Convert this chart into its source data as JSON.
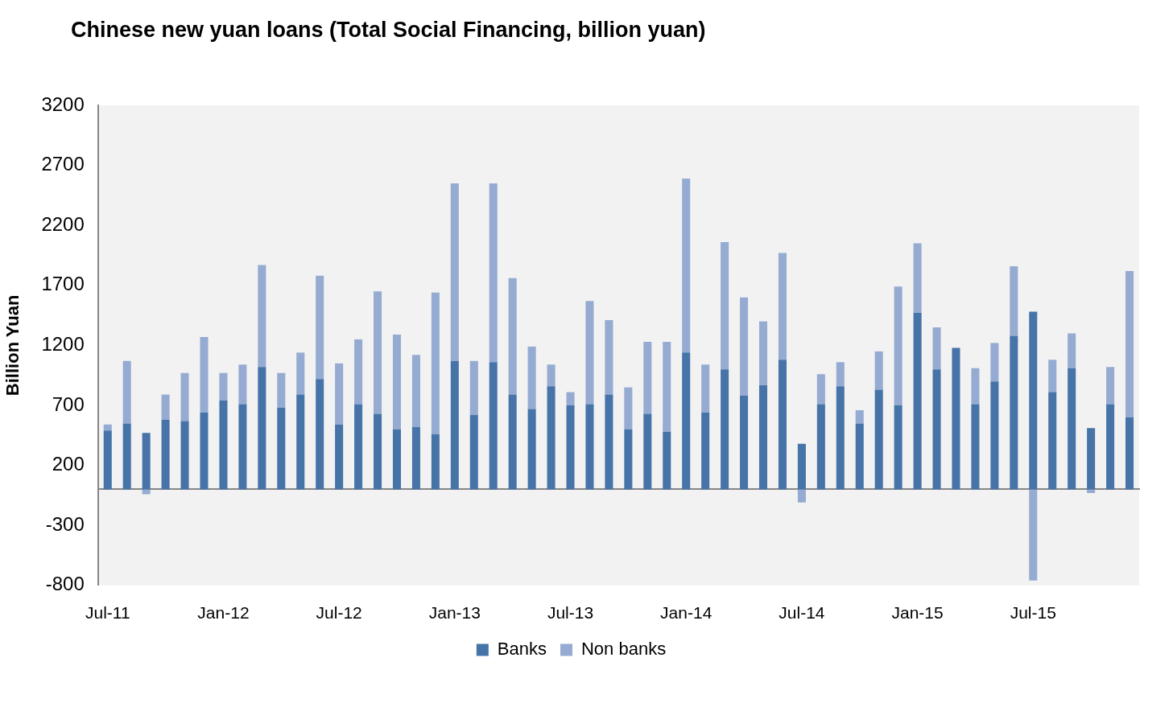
{
  "chart_data": {
    "type": "bar",
    "title": "Chinese new yuan loans (Total Social Financing, billion yuan)",
    "ylabel": "Billion Yuan",
    "categories": [
      "Jul-11",
      null,
      null,
      null,
      null,
      null,
      "Jan-12",
      null,
      null,
      null,
      null,
      null,
      "Jul-12",
      null,
      null,
      null,
      null,
      null,
      "Jan-13",
      null,
      null,
      null,
      null,
      null,
      "Jul-13",
      null,
      null,
      null,
      null,
      null,
      "Jan-14",
      null,
      null,
      null,
      null,
      null,
      "Jul-14",
      null,
      null,
      null,
      null,
      null,
      "Jan-15",
      null,
      null,
      null,
      null,
      null,
      "Jul-15",
      null,
      null,
      null,
      null,
      null
    ],
    "series": [
      {
        "name": "Banks",
        "color": "#4674a9",
        "values": [
          490,
          550,
          470,
          580,
          570,
          640,
          740,
          710,
          1020,
          680,
          790,
          920,
          540,
          710,
          630,
          500,
          520,
          460,
          1070,
          620,
          1060,
          790,
          670,
          860,
          700,
          710,
          790,
          500,
          630,
          480,
          1140,
          640,
          1000,
          780,
          870,
          1080,
          380,
          710,
          860,
          550,
          830,
          700,
          1470,
          1000,
          1180,
          710,
          900,
          1280,
          1480,
          810,
          1010,
          510,
          710,
          600
        ]
      },
      {
        "name": "Non banks",
        "color": "#95abd2",
        "values": [
          50,
          520,
          -40,
          210,
          400,
          630,
          230,
          330,
          850,
          290,
          350,
          860,
          510,
          540,
          1020,
          790,
          600,
          1180,
          1480,
          450,
          1490,
          970,
          520,
          180,
          110,
          860,
          620,
          350,
          600,
          750,
          1450,
          400,
          1060,
          820,
          530,
          890,
          -110,
          250,
          200,
          110,
          320,
          990,
          580,
          350,
          0,
          300,
          320,
          580,
          -760,
          270,
          290,
          -30,
          310,
          1220
        ]
      }
    ],
    "stacked": true,
    "ylim": [
      -800,
      3200
    ],
    "yticks": [
      -800,
      -300,
      200,
      700,
      1200,
      1700,
      2200,
      2700,
      3200
    ],
    "grid": false,
    "legend": "bottom"
  }
}
